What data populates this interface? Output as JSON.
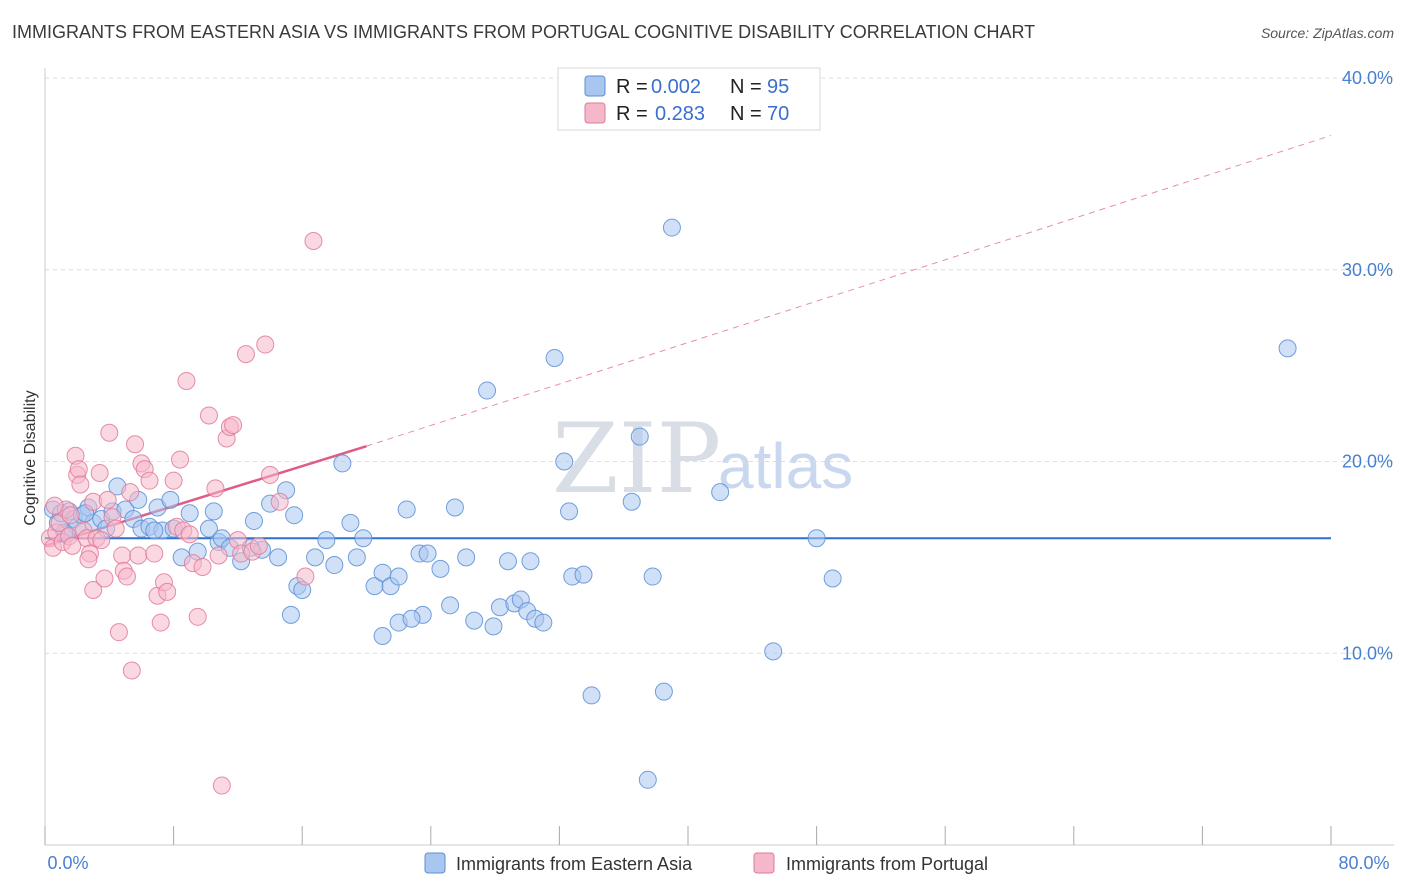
{
  "header": {
    "title": "IMMIGRANTS FROM EASTERN ASIA VS IMMIGRANTS FROM PORTUGAL COGNITIVE DISABILITY CORRELATION CHART",
    "source": "Source: ZipAtlas.com"
  },
  "watermark": {
    "zip": "ZIP",
    "atlas": "atlas"
  },
  "colors": {
    "blue_fill": "#a9c6f0",
    "blue_stroke": "#5b8fd6",
    "blue_line": "#2f6fd0",
    "pink_fill": "#f5b8cb",
    "pink_stroke": "#e07a9a",
    "pink_line": "#e05c86",
    "grid": "#dddddd",
    "axis_label": "#4a7fd0"
  },
  "legend_top": {
    "rows": [
      {
        "r_label": "R =",
        "r_value": "0.002",
        "n_label": "N =",
        "n_value": "95"
      },
      {
        "r_label": "R =",
        "r_value": "0.283",
        "n_label": "N =",
        "n_value": "70"
      }
    ]
  },
  "legend_bottom": {
    "series_a": "Immigrants from Eastern Asia",
    "series_b": "Immigrants from Portugal"
  },
  "chart_data": {
    "type": "scatter",
    "title": "IMMIGRANTS FROM EASTERN ASIA VS IMMIGRANTS FROM PORTUGAL COGNITIVE DISABILITY CORRELATION CHART",
    "xlabel": "",
    "ylabel": "Cognitive Disability",
    "xlim": [
      0,
      80
    ],
    "ylim": [
      0,
      40
    ],
    "x_tick_labels": [
      "0.0%",
      "80.0%"
    ],
    "y_ticks": [
      10,
      20,
      30,
      40
    ],
    "y_tick_labels": [
      "10.0%",
      "20.0%",
      "30.0%",
      "40.0%"
    ],
    "grid": true,
    "legend_position": "top-center",
    "series": [
      {
        "name": "Immigrants from Eastern Asia",
        "R": 0.002,
        "N": 95,
        "trend": {
          "x": [
            0,
            80
          ],
          "y": [
            16.0,
            16.0
          ],
          "style": "solid"
        },
        "points": [
          [
            0.5,
            17.5
          ],
          [
            0.8,
            16.8
          ],
          [
            1.0,
            17.3
          ],
          [
            1.3,
            16.2
          ],
          [
            1.5,
            17.4
          ],
          [
            1.8,
            17.0
          ],
          [
            2.0,
            16.6
          ],
          [
            2.3,
            17.2
          ],
          [
            2.7,
            17.6
          ],
          [
            3.0,
            16.8
          ],
          [
            3.5,
            17.0
          ],
          [
            3.8,
            16.5
          ],
          [
            4.2,
            17.4
          ],
          [
            4.5,
            18.7
          ],
          [
            5.0,
            17.5
          ],
          [
            5.5,
            17.0
          ],
          [
            5.8,
            18.0
          ],
          [
            6.0,
            16.5
          ],
          [
            6.5,
            16.6
          ],
          [
            7.0,
            17.6
          ],
          [
            7.3,
            16.4
          ],
          [
            7.8,
            18.0
          ],
          [
            8.5,
            15.0
          ],
          [
            9.0,
            17.3
          ],
          [
            9.5,
            15.3
          ],
          [
            10.2,
            16.5
          ],
          [
            10.8,
            15.8
          ],
          [
            11.0,
            16.0
          ],
          [
            11.5,
            15.5
          ],
          [
            12.2,
            14.8
          ],
          [
            13.0,
            16.9
          ],
          [
            13.5,
            15.4
          ],
          [
            14.0,
            17.8
          ],
          [
            14.5,
            15.0
          ],
          [
            15.0,
            18.5
          ],
          [
            15.5,
            17.2
          ],
          [
            15.7,
            13.5
          ],
          [
            16.0,
            13.3
          ],
          [
            15.3,
            12.0
          ],
          [
            16.8,
            15.0
          ],
          [
            17.5,
            15.9
          ],
          [
            18.0,
            14.6
          ],
          [
            18.5,
            19.9
          ],
          [
            19.0,
            16.8
          ],
          [
            19.4,
            15.0
          ],
          [
            19.8,
            16.0
          ],
          [
            20.5,
            13.5
          ],
          [
            21.0,
            14.2
          ],
          [
            21.5,
            13.5
          ],
          [
            22.0,
            14.0
          ],
          [
            21.0,
            10.9
          ],
          [
            22.0,
            11.6
          ],
          [
            23.5,
            12.0
          ],
          [
            22.8,
            11.8
          ],
          [
            22.5,
            17.5
          ],
          [
            23.3,
            15.2
          ],
          [
            23.8,
            15.2
          ],
          [
            24.6,
            14.4
          ],
          [
            25.2,
            12.5
          ],
          [
            25.5,
            17.6
          ],
          [
            26.2,
            15.0
          ],
          [
            26.7,
            11.7
          ],
          [
            27.5,
            23.7
          ],
          [
            27.9,
            11.4
          ],
          [
            28.3,
            12.4
          ],
          [
            28.8,
            14.8
          ],
          [
            29.2,
            12.6
          ],
          [
            29.6,
            12.8
          ],
          [
            30.2,
            14.8
          ],
          [
            30.0,
            12.2
          ],
          [
            30.5,
            11.8
          ],
          [
            31.0,
            11.6
          ],
          [
            31.7,
            25.4
          ],
          [
            32.3,
            20.0
          ],
          [
            32.6,
            17.4
          ],
          [
            32.8,
            14.0
          ],
          [
            33.5,
            14.1
          ],
          [
            34.0,
            7.8
          ],
          [
            37.0,
            21.3
          ],
          [
            36.5,
            17.9
          ],
          [
            37.5,
            3.4
          ],
          [
            37.8,
            14.0
          ],
          [
            38.5,
            8.0
          ],
          [
            39.0,
            32.2
          ],
          [
            42.0,
            18.4
          ],
          [
            45.3,
            10.1
          ],
          [
            48.0,
            16.0
          ],
          [
            49.0,
            13.9
          ],
          [
            77.3,
            25.9
          ],
          [
            10.5,
            17.4
          ],
          [
            2.5,
            17.3
          ],
          [
            1.2,
            16.3
          ],
          [
            6.8,
            16.4
          ],
          [
            8.0,
            16.5
          ],
          [
            12.8,
            15.5
          ]
        ]
      },
      {
        "name": "Immigrants from Portugal",
        "R": 0.283,
        "N": 70,
        "trend": {
          "x": [
            0,
            20
          ],
          "y": [
            15.6,
            20.8
          ],
          "x_dashed": [
            20,
            80
          ],
          "y_dashed": [
            20.8,
            37.0
          ],
          "style": "solid then dashed"
        },
        "points": [
          [
            0.3,
            16.0
          ],
          [
            0.5,
            15.5
          ],
          [
            0.7,
            16.3
          ],
          [
            0.9,
            16.8
          ],
          [
            1.1,
            15.8
          ],
          [
            1.3,
            17.5
          ],
          [
            1.5,
            16.1
          ],
          [
            1.7,
            15.6
          ],
          [
            1.9,
            20.3
          ],
          [
            2.0,
            19.3
          ],
          [
            2.1,
            19.6
          ],
          [
            2.2,
            18.8
          ],
          [
            2.4,
            16.4
          ],
          [
            2.6,
            16.0
          ],
          [
            2.8,
            15.2
          ],
          [
            3.0,
            17.9
          ],
          [
            3.2,
            16.0
          ],
          [
            3.0,
            13.3
          ],
          [
            2.7,
            14.9
          ],
          [
            3.4,
            19.4
          ],
          [
            3.5,
            15.9
          ],
          [
            3.7,
            13.9
          ],
          [
            3.9,
            18.0
          ],
          [
            4.0,
            21.5
          ],
          [
            4.2,
            17.1
          ],
          [
            4.4,
            16.5
          ],
          [
            4.6,
            11.1
          ],
          [
            4.8,
            15.1
          ],
          [
            4.9,
            14.3
          ],
          [
            5.1,
            14.0
          ],
          [
            5.3,
            18.4
          ],
          [
            5.4,
            9.1
          ],
          [
            5.6,
            20.9
          ],
          [
            5.8,
            15.1
          ],
          [
            6.0,
            19.9
          ],
          [
            6.2,
            19.6
          ],
          [
            6.5,
            19.0
          ],
          [
            6.8,
            15.2
          ],
          [
            7.0,
            13.0
          ],
          [
            7.2,
            11.6
          ],
          [
            7.4,
            13.7
          ],
          [
            7.6,
            13.2
          ],
          [
            8.0,
            19.0
          ],
          [
            8.2,
            16.6
          ],
          [
            8.4,
            20.1
          ],
          [
            8.6,
            16.4
          ],
          [
            8.8,
            24.2
          ],
          [
            9.0,
            16.2
          ],
          [
            9.2,
            14.7
          ],
          [
            9.5,
            11.9
          ],
          [
            9.8,
            14.5
          ],
          [
            10.2,
            22.4
          ],
          [
            10.6,
            18.6
          ],
          [
            10.8,
            15.1
          ],
          [
            11.0,
            3.1
          ],
          [
            11.3,
            21.2
          ],
          [
            11.5,
            21.8
          ],
          [
            11.7,
            21.9
          ],
          [
            12.0,
            15.9
          ],
          [
            12.2,
            15.2
          ],
          [
            12.5,
            25.6
          ],
          [
            12.9,
            15.3
          ],
          [
            13.3,
            15.6
          ],
          [
            13.7,
            26.1
          ],
          [
            14.0,
            19.3
          ],
          [
            14.6,
            17.9
          ],
          [
            16.2,
            14.0
          ],
          [
            16.7,
            31.5
          ],
          [
            1.6,
            17.2
          ],
          [
            0.6,
            17.7
          ]
        ]
      }
    ]
  }
}
